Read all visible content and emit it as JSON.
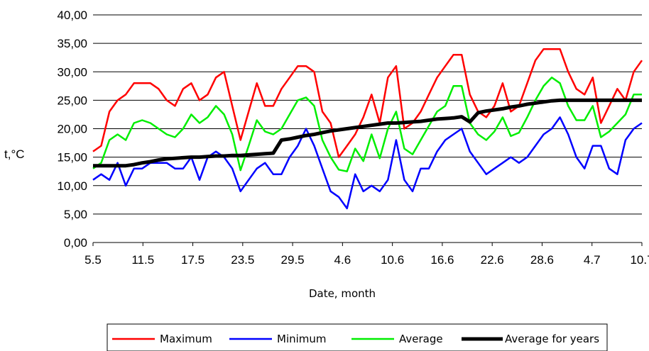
{
  "chart_data": {
    "type": "line",
    "title": "",
    "xlabel": "Date, month",
    "ylabel": "t,°C",
    "ylim": [
      0,
      40
    ],
    "y_ticks": [
      "0,00",
      "5,00",
      "10,00",
      "15,00",
      "20,00",
      "25,00",
      "30,00",
      "35,00",
      "40,00"
    ],
    "x_ticks": [
      "5.5",
      "11.5",
      "17.5",
      "23.5",
      "29.5",
      "4.6",
      "10.6",
      "16.6",
      "22.6",
      "28.6",
      "4.7",
      "10.7"
    ],
    "grid": "horizontal",
    "legend_position": "bottom",
    "series": [
      {
        "name": "Maximum",
        "color": "#ff0000",
        "values": [
          16,
          17,
          23,
          25,
          26,
          28,
          28,
          28,
          27,
          25,
          24,
          27,
          28,
          25,
          26,
          29,
          30,
          24,
          18,
          23,
          28,
          24,
          24,
          27,
          29,
          31,
          31,
          30,
          23,
          21,
          15,
          17,
          19,
          22,
          26,
          21,
          29,
          31,
          20,
          21,
          23,
          26,
          29,
          31,
          33,
          33,
          26,
          23,
          22,
          24,
          28,
          23,
          24,
          28,
          32,
          34,
          34,
          34,
          30,
          27,
          26,
          29,
          21,
          24,
          27,
          25,
          30,
          32
        ],
        "label_visible": true
      },
      {
        "name": "Minimum",
        "color": "#0000ff",
        "values": [
          11,
          12,
          11,
          14,
          10,
          13,
          13,
          14,
          14,
          14,
          13,
          13,
          15,
          11,
          15,
          16,
          15,
          13,
          9,
          11,
          13,
          14,
          12,
          12,
          15,
          17,
          20,
          17,
          13,
          9,
          8,
          6,
          12,
          9,
          10,
          9,
          11,
          18,
          11,
          9,
          13,
          13,
          16,
          18,
          19,
          20,
          16,
          14,
          12,
          13,
          14,
          15,
          14,
          15,
          17,
          19,
          20,
          22,
          19,
          15,
          13,
          17,
          17,
          13,
          12,
          18,
          20,
          21
        ]
      },
      {
        "name": "Average",
        "color": "#00ee00",
        "values": [
          13,
          14,
          18,
          19,
          18,
          21,
          21.5,
          21,
          20,
          19,
          18.5,
          20,
          22.5,
          21,
          22,
          24,
          22.5,
          19,
          12.7,
          17,
          21.5,
          19.5,
          19,
          20,
          22.5,
          25,
          25.5,
          24,
          18,
          15,
          12.8,
          12.5,
          16.5,
          14.3,
          19,
          14.8,
          20,
          23,
          16.5,
          15.5,
          18,
          20.5,
          23,
          24,
          27.5,
          27.5,
          21,
          19,
          18,
          19.5,
          22,
          18.7,
          19.3,
          22,
          25,
          27.5,
          29,
          28,
          24,
          21.5,
          21.5,
          24,
          18.5,
          19.5,
          21,
          22.5,
          26,
          26
        ]
      },
      {
        "name": "Average for years",
        "color": "#000000",
        "values": [
          13.5,
          13.5,
          13.5,
          13.5,
          13.5,
          13.7,
          14,
          14.2,
          14.5,
          14.7,
          14.8,
          14.9,
          15,
          15,
          15.1,
          15.2,
          15.2,
          15.3,
          15.3,
          15.4,
          15.5,
          15.6,
          15.7,
          18,
          18.2,
          18.5,
          18.8,
          19,
          19.3,
          19.6,
          19.8,
          20,
          20.2,
          20.4,
          20.6,
          20.8,
          21,
          21,
          21.1,
          21.2,
          21.3,
          21.5,
          21.7,
          21.8,
          21.9,
          22.1,
          21.2,
          22.8,
          23.1,
          23.3,
          23.5,
          23.8,
          24,
          24.3,
          24.5,
          24.7,
          24.9,
          25,
          25,
          25,
          25,
          25,
          25,
          25,
          25,
          25,
          25,
          25
        ]
      }
    ]
  }
}
